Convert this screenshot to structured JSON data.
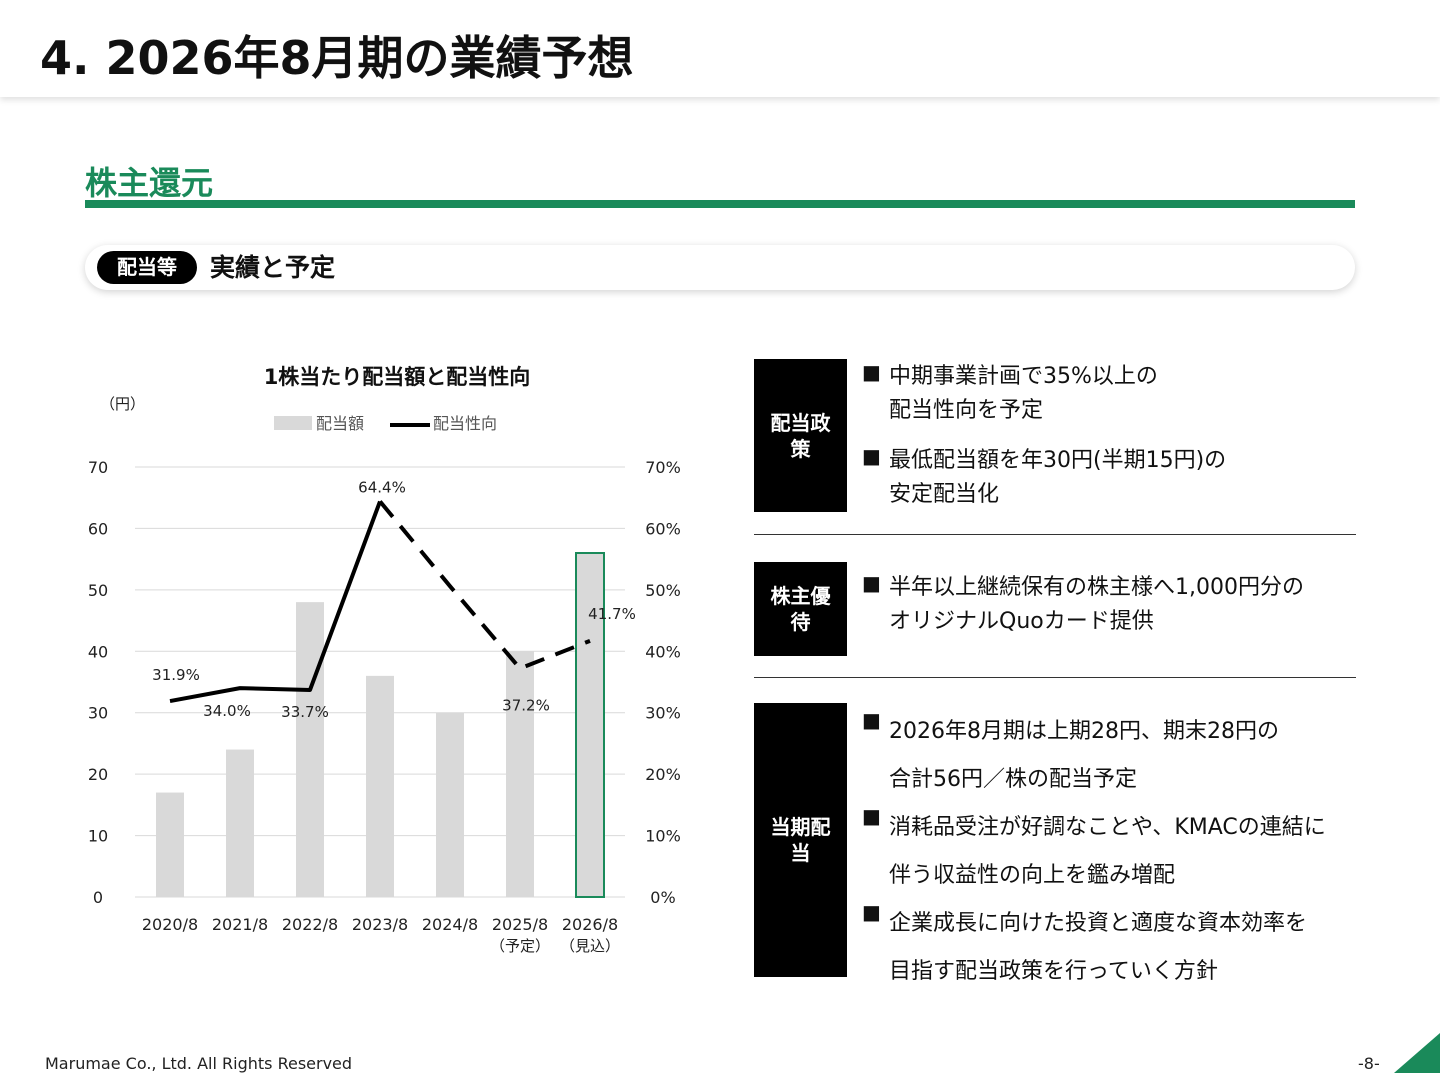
{
  "header": {
    "title": "4.  2026年8月期の業績予想"
  },
  "section": {
    "title": "株主還元"
  },
  "subbar": {
    "badge": "配当等",
    "text": "実績と予定"
  },
  "chart_data": {
    "type": "bar+line",
    "title": "1株当たり配当額と配当性向",
    "y_left_unit": "（円）",
    "y_left_ticks": [
      "70",
      "60",
      "50",
      "40",
      "30",
      "20",
      "10",
      "0"
    ],
    "y_right_ticks": [
      "70%",
      "60%",
      "50%",
      "40%",
      "30%",
      "20%",
      "10%",
      "0%"
    ],
    "ylim": [
      0,
      70
    ],
    "categories": [
      "2020/8",
      "2021/8",
      "2022/8",
      "2023/8",
      "2024/8",
      "2025/8",
      "2026/8"
    ],
    "category_sublabels": [
      "",
      "",
      "",
      "",
      "",
      "（予定）",
      "（見込）"
    ],
    "legend": {
      "bar": "配当額",
      "line": "配当性向"
    },
    "series": [
      {
        "name": "配当額",
        "kind": "bar",
        "values": [
          17,
          24,
          48,
          36,
          30,
          40,
          56
        ]
      },
      {
        "name": "配当性向",
        "kind": "line",
        "values": [
          31.9,
          34.0,
          33.7,
          64.4,
          50.6,
          37.2,
          41.7
        ],
        "labels": [
          "31.9%",
          "34.0%",
          "33.7%",
          "64.4%",
          "",
          "37.2%",
          "41.7%"
        ]
      }
    ],
    "highlight_index": 6,
    "dashed_from_index": 3,
    "colors": {
      "bar": "#d9d9d9",
      "line": "#000000",
      "highlight": "#1a8a5a"
    }
  },
  "policy": {
    "label": "配当政策",
    "bullets": [
      {
        "l1": "中期事業計画で35%以上の",
        "l2": "配当性向を予定"
      },
      {
        "l1": "最低配当額を年30円(半期15円)の",
        "l2": "安定配当化"
      }
    ]
  },
  "benefit": {
    "label": "株主優待",
    "bullets": [
      {
        "l1": "半年以上継続保有の株主様へ1,000円分の",
        "l2": "オリジナルQuoカード提供"
      }
    ]
  },
  "current": {
    "label": "当期配当",
    "bullets": [
      {
        "l1": "2026年8月期は上期28円、期末28円の",
        "l2": "合計56円／株の配当予定"
      },
      {
        "l1": "消耗品受注が好調なことや、KMACの連結に",
        "l2": "伴う収益性の向上を鑑み増配"
      },
      {
        "l1": "企業成長に向けた投資と適度な資本効率を",
        "l2": "目指す配当政策を行っていく方針"
      }
    ]
  },
  "bullet_mark": "■",
  "footer": {
    "copyright": "Marumae Co., Ltd. All Rights Reserved",
    "page": "-8-"
  },
  "accent_color": "#1a8a5a"
}
